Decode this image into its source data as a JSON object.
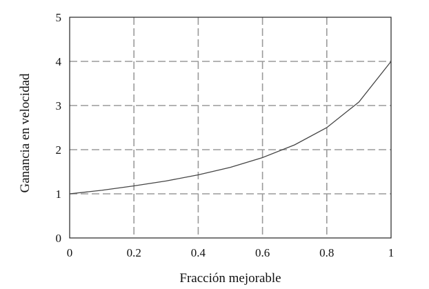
{
  "chart_data": {
    "type": "line",
    "title": "",
    "xlabel": "Fracción mejorable",
    "ylabel": "Ganancia en velocidad",
    "xlim": [
      0,
      1
    ],
    "ylim": [
      0,
      5
    ],
    "xticks": [
      0,
      0.2,
      0.4,
      0.6,
      0.8,
      1
    ],
    "xtick_labels": [
      "0",
      "0.2",
      "0.4",
      "0.6",
      "0.8",
      "1"
    ],
    "yticks": [
      0,
      1,
      2,
      3,
      4,
      5
    ],
    "ytick_labels": [
      "0",
      "1",
      "2",
      "3",
      "4",
      "5"
    ],
    "grid": true,
    "grid_style": "dashed",
    "colors": {
      "line": "#444444",
      "grid": "#9a9a9a",
      "axis": "#222222"
    },
    "series": [
      {
        "x": [
          0,
          0.1,
          0.2,
          0.3,
          0.4,
          0.5,
          0.6,
          0.7,
          0.8,
          0.9,
          1.0
        ],
        "values": [
          1.0,
          1.08,
          1.18,
          1.29,
          1.43,
          1.6,
          1.82,
          2.11,
          2.5,
          3.08,
          4.0
        ]
      }
    ]
  }
}
